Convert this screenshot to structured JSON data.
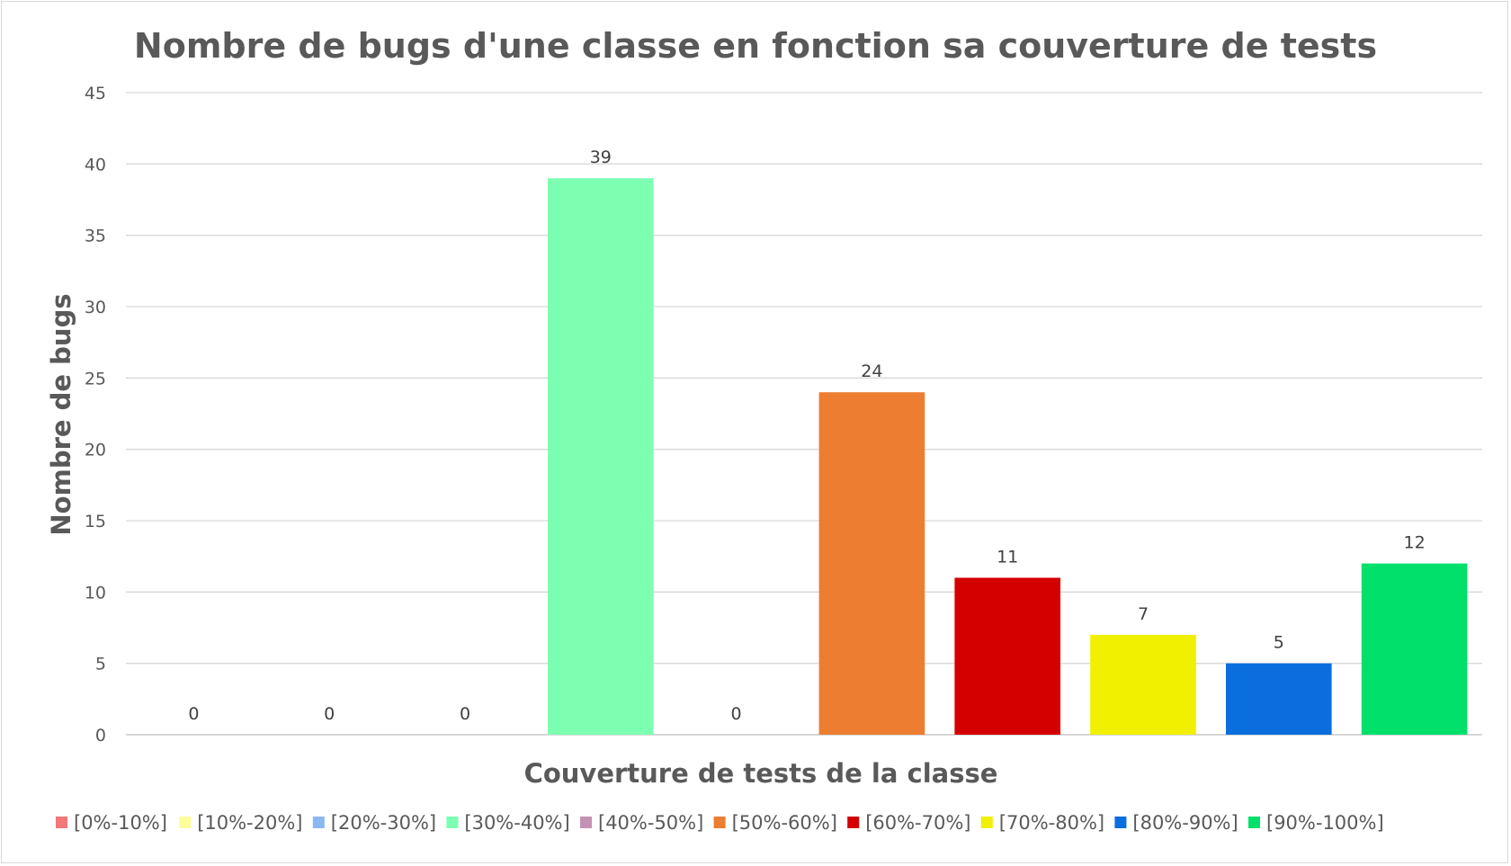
{
  "chart_data": {
    "type": "bar",
    "title": "Nombre de bugs d'une classe en fonction sa couverture de tests",
    "xlabel": "Couverture de tests de la classe",
    "ylabel": "Nombre de bugs",
    "ylim": [
      0,
      45
    ],
    "yticks": [
      0,
      5,
      10,
      15,
      20,
      25,
      30,
      35,
      40,
      45
    ],
    "grid": true,
    "legend_position": "bottom",
    "categories": [
      "[0%-10%]",
      "[10%-20%]",
      "[20%-30%]",
      "[30%-40%]",
      "[40%-50%]",
      "[50%-60%]",
      "[60%-70%]",
      "[70%-80%]",
      "[80%-90%]",
      "[90%-100%]"
    ],
    "values": [
      0,
      0,
      0,
      39,
      0,
      24,
      11,
      7,
      5,
      12
    ],
    "colors": [
      "#f4777a",
      "#fdfd9a",
      "#8ab8f2",
      "#7dffb2",
      "#c493b3",
      "#ed7d31",
      "#d40000",
      "#f0f000",
      "#0a6ede",
      "#00e06a"
    ],
    "data_labels": [
      "0",
      "0",
      "0",
      "39",
      "0",
      "24",
      "11",
      "7",
      "5",
      "12"
    ]
  }
}
